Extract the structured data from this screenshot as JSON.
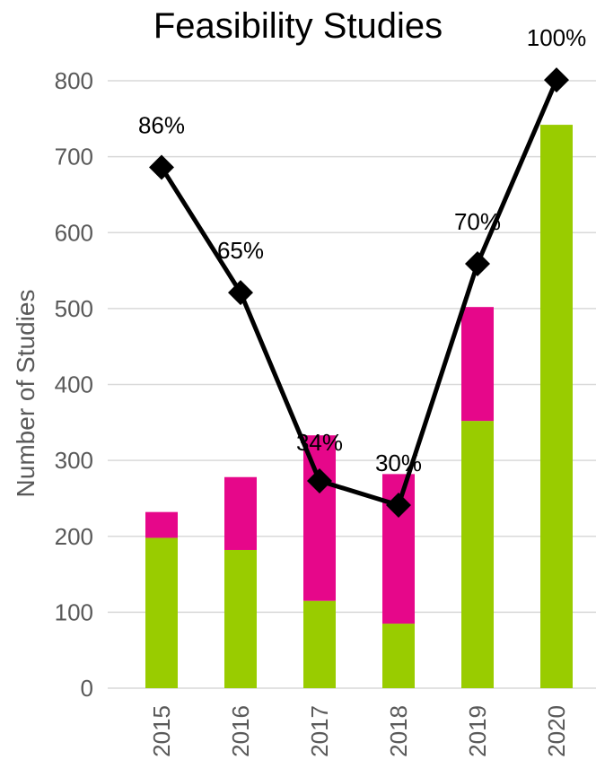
{
  "chart_data": {
    "type": "bar",
    "stacked": true,
    "title": "Feasibility Studies",
    "xlabel": "",
    "ylabel": "Number of Studies",
    "ylim": [
      0,
      800
    ],
    "yticks": [
      "0",
      "100",
      "200",
      "300",
      "400",
      "500",
      "600",
      "700",
      "800"
    ],
    "categories": [
      "2015",
      "2016",
      "2017",
      "2018",
      "2019",
      "2020"
    ],
    "grid": true,
    "legend": "none",
    "series": [
      {
        "type": "bar",
        "color": "#99cc00",
        "values": [
          198,
          182,
          115,
          85,
          352,
          742
        ]
      },
      {
        "type": "bar",
        "color": "#e6078a",
        "values": [
          34,
          96,
          218,
          197,
          150,
          0
        ]
      },
      {
        "type": "line",
        "color": "#000000",
        "marker": "diamond",
        "values": [
          686,
          521,
          273,
          241,
          559,
          801
        ],
        "labels": [
          "86%",
          "65%",
          "34%",
          "30%",
          "70%",
          "100%"
        ]
      }
    ]
  }
}
